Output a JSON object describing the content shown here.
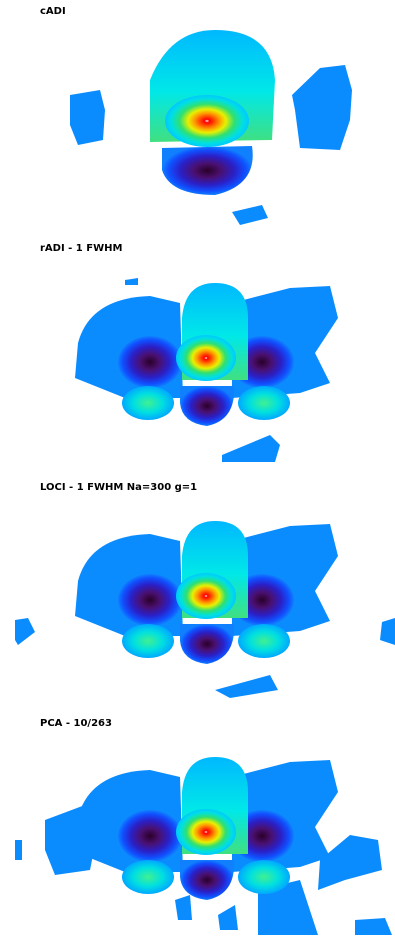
{
  "panels": [
    {
      "title": "cADI"
    },
    {
      "title": "rADI - 1 FWHM"
    },
    {
      "title": "LOCI - 1 FWHM Na=300 g=1"
    },
    {
      "title": "PCA - 10/263"
    }
  ]
}
